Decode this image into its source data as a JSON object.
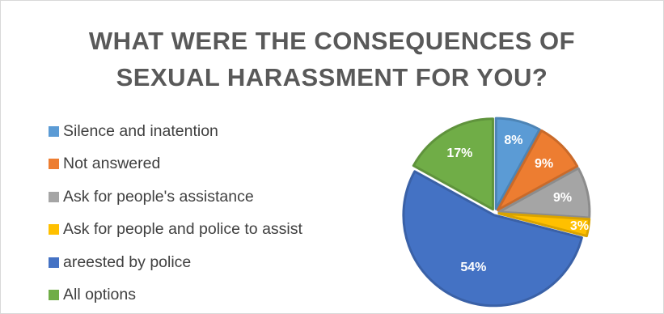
{
  "chart_data": {
    "type": "pie",
    "title": "WHAT WERE THE CONSEQUENCES OF SEXUAL HARASSMENT FOR YOU?",
    "title_lines": [
      "WHAT WERE THE CONSEQUENCES OF",
      "SEXUAL HARASSMENT FOR YOU?"
    ],
    "legend_position": "left",
    "slices": [
      {
        "label": "Silence and inatention",
        "value": 8,
        "display": "8%",
        "color": "#5B9BD5"
      },
      {
        "label": "Not answered",
        "value": 9,
        "display": "9%",
        "color": "#ED7D31"
      },
      {
        "label": "Ask for people's assistance",
        "value": 9,
        "display": "9%",
        "color": "#A5A5A5"
      },
      {
        "label": "Ask for people and police to assist",
        "value": 3,
        "display": "3%",
        "color": "#FFC000"
      },
      {
        "label": "areested by police",
        "value": 54,
        "display": "54%",
        "color": "#4472C4"
      },
      {
        "label": "All options",
        "value": 17,
        "display": "17%",
        "color": "#70AD47"
      }
    ],
    "exploded": true
  }
}
